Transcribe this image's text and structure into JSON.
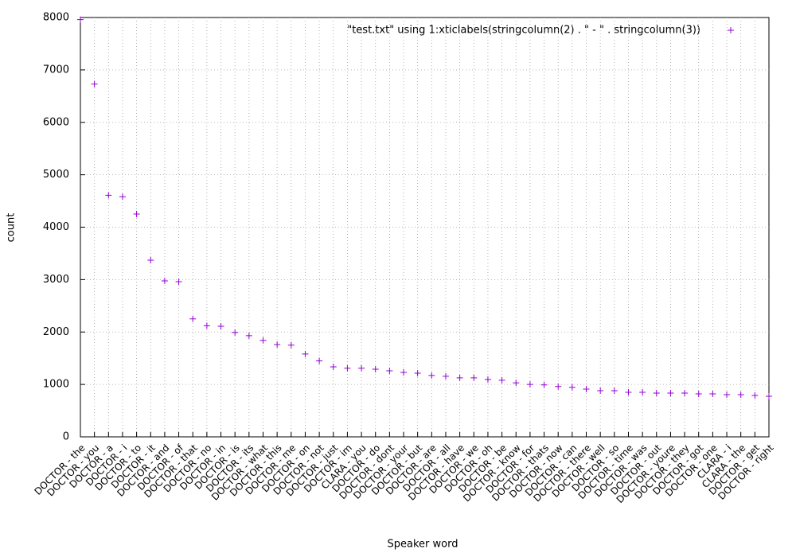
{
  "chart_data": {
    "type": "scatter",
    "legend_label": "\"test.txt\" using 1:xticlabels(stringcolumn(2) . \" - \" . stringcolumn(3))",
    "x_label": "Speaker word",
    "y_label": "count",
    "categories": [
      "DOCTOR - the",
      "DOCTOR - you",
      "DOCTOR - a",
      "DOCTOR - i",
      "DOCTOR - to",
      "DOCTOR - it",
      "DOCTOR - and",
      "DOCTOR - of",
      "DOCTOR - that",
      "DOCTOR - no",
      "DOCTOR - in",
      "DOCTOR - is",
      "DOCTOR - its",
      "DOCTOR - what",
      "DOCTOR - this",
      "DOCTOR - me",
      "DOCTOR - on",
      "DOCTOR - not",
      "DOCTOR - just",
      "DOCTOR - im",
      "CLARA - you",
      "DOCTOR - do",
      "DOCTOR - dont",
      "DOCTOR - your",
      "DOCTOR - but",
      "DOCTOR - are",
      "DOCTOR - all",
      "DOCTOR - have",
      "DOCTOR - we",
      "DOCTOR - oh",
      "DOCTOR - be",
      "DOCTOR - know",
      "DOCTOR - for",
      "DOCTOR - thats",
      "DOCTOR - now",
      "DOCTOR - can",
      "DOCTOR - there",
      "DOCTOR - well",
      "DOCTOR - so",
      "DOCTOR - time",
      "DOCTOR - was",
      "DOCTOR - out",
      "DOCTOR - youre",
      "DOCTOR - they",
      "DOCTOR - got",
      "DOCTOR - one",
      "CLARA - i",
      "CLARA - the",
      "DOCTOR - get",
      "DOCTOR - right"
    ],
    "values": [
      7960,
      6730,
      4610,
      4580,
      4250,
      3370,
      2975,
      2960,
      2250,
      2120,
      2110,
      1990,
      1930,
      1840,
      1760,
      1750,
      1580,
      1450,
      1335,
      1310,
      1310,
      1290,
      1260,
      1230,
      1215,
      1170,
      1155,
      1125,
      1125,
      1095,
      1080,
      1030,
      1000,
      990,
      960,
      945,
      910,
      880,
      880,
      850,
      850,
      835,
      835,
      835,
      820,
      820,
      805,
      805,
      790,
      775
    ],
    "color": "#9400d3",
    "ylim": [
      0,
      8000
    ],
    "yticks": [
      0,
      1000,
      2000,
      3000,
      4000,
      5000,
      6000,
      7000,
      8000
    ],
    "grid": true
  }
}
